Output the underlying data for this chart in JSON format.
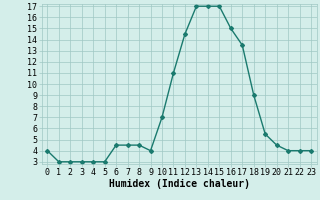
{
  "x": [
    0,
    1,
    2,
    3,
    4,
    5,
    6,
    7,
    8,
    9,
    10,
    11,
    12,
    13,
    14,
    15,
    16,
    17,
    18,
    19,
    20,
    21,
    22,
    23
  ],
  "y": [
    4,
    3,
    3,
    3,
    3,
    3,
    4.5,
    4.5,
    4.5,
    4,
    7,
    11,
    14.5,
    17,
    17,
    17,
    15,
    13.5,
    9,
    5.5,
    4.5,
    4,
    4,
    4
  ],
  "xlabel": "Humidex (Indice chaleur)",
  "ylim": [
    3,
    17
  ],
  "xlim": [
    -0.5,
    23.5
  ],
  "yticks": [
    3,
    4,
    5,
    6,
    7,
    8,
    9,
    10,
    11,
    12,
    13,
    14,
    15,
    16,
    17
  ],
  "xticks": [
    0,
    1,
    2,
    3,
    4,
    5,
    6,
    7,
    8,
    9,
    10,
    11,
    12,
    13,
    14,
    15,
    16,
    17,
    18,
    19,
    20,
    21,
    22,
    23
  ],
  "line_color": "#1a7a6e",
  "bg_color": "#d4eeea",
  "grid_color": "#a0c8c4",
  "marker": "D",
  "marker_size": 2.0,
  "linewidth": 1.0,
  "xlabel_fontsize": 7,
  "tick_fontsize": 6
}
